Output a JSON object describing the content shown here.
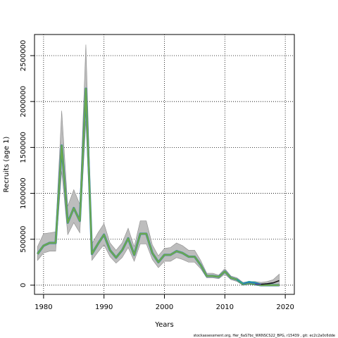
{
  "chart_data": {
    "type": "line",
    "title": "",
    "xlabel": "Years",
    "ylabel": "Recruits (age 1)",
    "xlim": [
      1978.5,
      2021.5
    ],
    "ylim": [
      -100000,
      2730000
    ],
    "x_ticks": [
      1980,
      1990,
      2000,
      2010,
      2020
    ],
    "y_ticks": [
      0,
      500000,
      1000000,
      1500000,
      2000000,
      2500000
    ],
    "grid": true,
    "grid_style": "dotted",
    "legend": "none",
    "colors": {
      "band": "#bdbdbd",
      "band_edge": "#8c8c8c",
      "main_line": "#6aa84f",
      "main_line_under": "#2b7bba",
      "retro_1": "#2b7bba",
      "retro_2": "#1f9e9e",
      "retro_3": "#4b3f8f",
      "retro_4": "#1a1a1a"
    },
    "series": [
      {
        "role": "estimate",
        "x": [
          1979,
          1980,
          1981,
          1982,
          1983,
          1984,
          1985,
          1986,
          1987,
          1988,
          1989,
          1990,
          1991,
          1992,
          1993,
          1994,
          1995,
          1996,
          1997,
          1998,
          1999,
          2000,
          2001,
          2002,
          2003,
          2004,
          2005,
          2006,
          2007,
          2008,
          2009,
          2010,
          2011,
          2012,
          2013,
          2014,
          2015,
          2016,
          2017,
          2018,
          2019
        ],
        "values": [
          340000,
          430000,
          460000,
          460000,
          1520000,
          680000,
          840000,
          700000,
          2140000,
          340000,
          450000,
          550000,
          380000,
          300000,
          380000,
          510000,
          330000,
          560000,
          560000,
          350000,
          250000,
          330000,
          330000,
          370000,
          350000,
          310000,
          310000,
          220000,
          100000,
          100000,
          90000,
          150000,
          80000,
          60000,
          10000,
          20000,
          10000,
          0,
          0,
          0,
          0
        ]
      },
      {
        "role": "band_upper",
        "x": [
          1979,
          1980,
          1981,
          1982,
          1983,
          1984,
          1985,
          1986,
          1987,
          1988,
          1989,
          1990,
          1991,
          1992,
          1993,
          1994,
          1995,
          1996,
          1997,
          1998,
          1999,
          2000,
          2001,
          2002,
          2003,
          2004,
          2005,
          2006,
          2007,
          2008,
          2009,
          2010,
          2011,
          2012,
          2013,
          2014,
          2015,
          2016,
          2017,
          2018,
          2019
        ],
        "values": [
          420000,
          560000,
          570000,
          580000,
          1900000,
          860000,
          1040000,
          880000,
          2620000,
          450000,
          570000,
          670000,
          460000,
          380000,
          460000,
          620000,
          420000,
          700000,
          700000,
          440000,
          320000,
          400000,
          410000,
          460000,
          430000,
          380000,
          380000,
          270000,
          130000,
          130000,
          110000,
          180000,
          100000,
          80000,
          30000,
          40000,
          40000,
          30000,
          40000,
          60000,
          120000
        ]
      },
      {
        "role": "band_lower",
        "x": [
          1979,
          1980,
          1981,
          1982,
          1983,
          1984,
          1985,
          1986,
          1987,
          1988,
          1989,
          1990,
          1991,
          1992,
          1993,
          1994,
          1995,
          1996,
          1997,
          1998,
          1999,
          2000,
          2001,
          2002,
          2003,
          2004,
          2005,
          2006,
          2007,
          2008,
          2009,
          2010,
          2011,
          2012,
          2013,
          2014,
          2015,
          2016,
          2017,
          2018,
          2019
        ],
        "values": [
          270000,
          350000,
          370000,
          370000,
          1240000,
          550000,
          680000,
          570000,
          1790000,
          270000,
          360000,
          440000,
          310000,
          240000,
          300000,
          410000,
          260000,
          450000,
          450000,
          280000,
          190000,
          260000,
          260000,
          300000,
          280000,
          250000,
          250000,
          180000,
          80000,
          80000,
          70000,
          120000,
          60000,
          40000,
          0,
          10000,
          0,
          -10000,
          -10000,
          -10000,
          -10000
        ]
      },
      {
        "role": "retrospective",
        "color_key": "retro_2",
        "x": [
          2012,
          2013,
          2014,
          2015,
          2016
        ],
        "values": [
          60000,
          20000,
          40000,
          30000,
          10000
        ]
      },
      {
        "role": "retrospective",
        "color_key": "retro_1",
        "x": [
          2013,
          2014,
          2015,
          2016,
          2017
        ],
        "values": [
          15000,
          30000,
          20000,
          10000,
          15000
        ]
      },
      {
        "role": "retrospective",
        "color_key": "retro_3",
        "x": [
          2015,
          2016,
          2017,
          2018
        ],
        "values": [
          10000,
          10000,
          15000,
          25000
        ]
      },
      {
        "role": "retrospective",
        "color_key": "retro_4",
        "x": [
          2016,
          2017,
          2018,
          2019
        ],
        "values": [
          10000,
          15000,
          25000,
          50000
        ]
      }
    ]
  },
  "footer_text": "stockassessment.org,  Her_6aS7bc_WKNSCS22_BPG,  r15439 ,  git: ec2c2a0c6dde"
}
